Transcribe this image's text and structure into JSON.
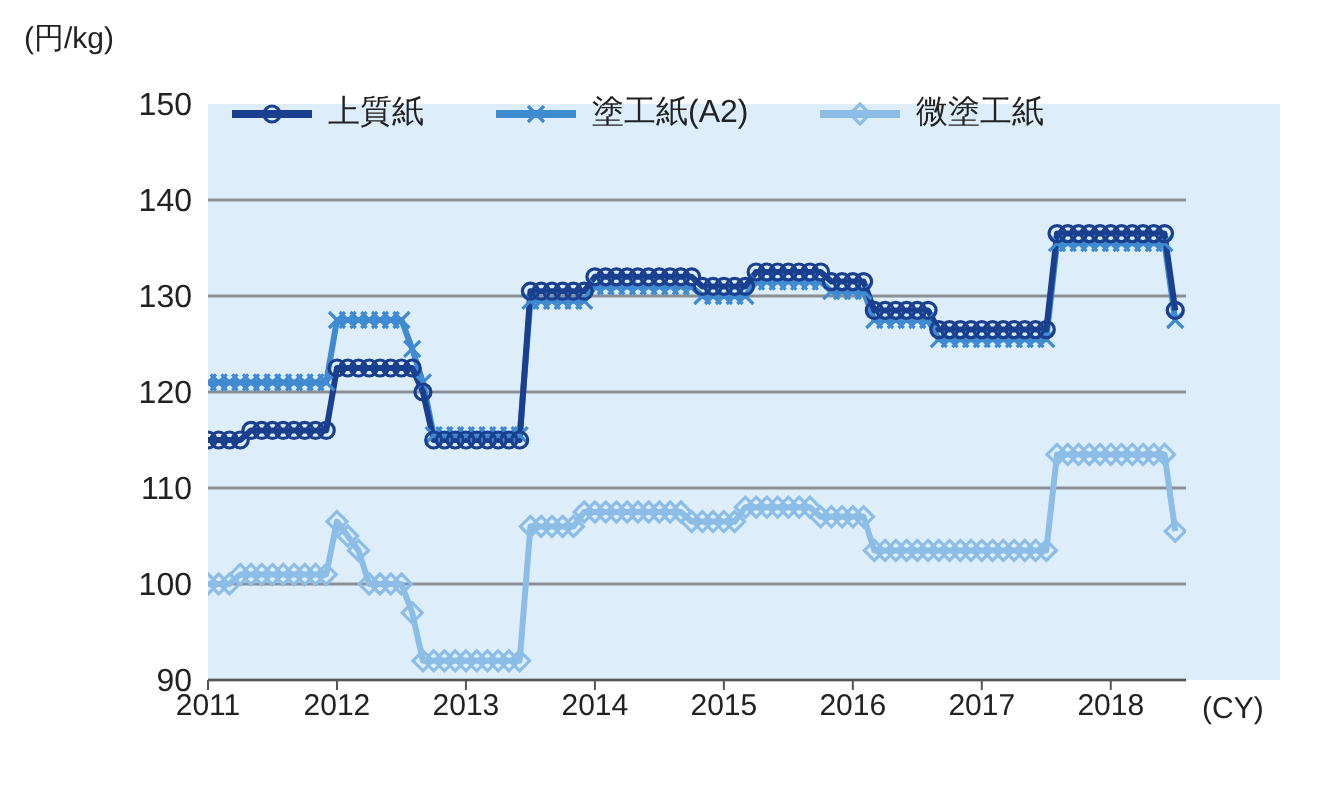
{
  "chart_data": {
    "type": "line",
    "ylabel": "(円/kg)",
    "xlabel": "(CY)",
    "x": [
      "2011-01",
      "2011-02",
      "2011-03",
      "2011-04",
      "2011-05",
      "2011-06",
      "2011-07",
      "2011-08",
      "2011-09",
      "2011-10",
      "2011-11",
      "2011-12",
      "2012-01",
      "2012-02",
      "2012-03",
      "2012-04",
      "2012-05",
      "2012-06",
      "2012-07",
      "2012-08",
      "2012-09",
      "2012-10",
      "2012-11",
      "2012-12",
      "2013-01",
      "2013-02",
      "2013-03",
      "2013-04",
      "2013-05",
      "2013-06",
      "2013-07",
      "2013-08",
      "2013-09",
      "2013-10",
      "2013-11",
      "2013-12",
      "2014-01",
      "2014-02",
      "2014-03",
      "2014-04",
      "2014-05",
      "2014-06",
      "2014-07",
      "2014-08",
      "2014-09",
      "2014-10",
      "2014-11",
      "2014-12",
      "2015-01",
      "2015-02",
      "2015-03",
      "2015-04",
      "2015-05",
      "2015-06",
      "2015-07",
      "2015-08",
      "2015-09",
      "2015-10",
      "2015-11",
      "2015-12",
      "2016-01",
      "2016-02",
      "2016-03",
      "2016-04",
      "2016-05",
      "2016-06",
      "2016-07",
      "2016-08",
      "2016-09",
      "2016-10",
      "2016-11",
      "2016-12",
      "2017-01",
      "2017-02",
      "2017-03",
      "2017-04",
      "2017-05",
      "2017-06",
      "2017-07",
      "2017-08",
      "2017-09",
      "2017-10",
      "2017-11",
      "2017-12",
      "2018-01",
      "2018-02",
      "2018-03",
      "2018-04",
      "2018-05",
      "2018-06",
      "2018-07"
    ],
    "series": [
      {
        "name": "上質紙",
        "color": "#1a3f8f",
        "marker": "circle",
        "values": [
          115,
          115,
          115,
          115,
          116,
          116,
          116,
          116,
          116,
          116,
          116,
          116,
          122.5,
          122.5,
          122.5,
          122.5,
          122.5,
          122.5,
          122.5,
          122.5,
          120,
          115,
          115,
          115,
          115,
          115,
          115,
          115,
          115,
          115,
          130.5,
          130.5,
          130.5,
          130.5,
          130.5,
          130.5,
          132,
          132,
          132,
          132,
          132,
          132,
          132,
          132,
          132,
          132,
          131,
          131,
          131,
          131,
          131,
          132.5,
          132.5,
          132.5,
          132.5,
          132.5,
          132.5,
          132.5,
          131.5,
          131.5,
          131.5,
          131.5,
          128.5,
          128.5,
          128.5,
          128.5,
          128.5,
          128.5,
          126.5,
          126.5,
          126.5,
          126.5,
          126.5,
          126.5,
          126.5,
          126.5,
          126.5,
          126.5,
          126.5,
          136.5,
          136.5,
          136.5,
          136.5,
          136.5,
          136.5,
          136.5,
          136.5,
          136.5,
          136.5,
          136.5,
          128.5
        ]
      },
      {
        "name": "塗工紙(A2)",
        "color": "#3f8ad0",
        "marker": "cross",
        "values": [
          121,
          121,
          121,
          121,
          121,
          121,
          121,
          121,
          121,
          121,
          121,
          121,
          127.5,
          127.5,
          127.5,
          127.5,
          127.5,
          127.5,
          127.5,
          124.5,
          121,
          115.5,
          115.5,
          115.5,
          115.5,
          115.5,
          115.5,
          115.5,
          115.5,
          115.5,
          129.5,
          129.5,
          129.5,
          129.5,
          129.5,
          129.5,
          131,
          131,
          131,
          131,
          131,
          131,
          131,
          131,
          131,
          131,
          130,
          130,
          130,
          130,
          130,
          131.5,
          131.5,
          131.5,
          131.5,
          131.5,
          131.5,
          131.5,
          130.5,
          130.5,
          130.5,
          130.5,
          127.5,
          127.5,
          127.5,
          127.5,
          127.5,
          127.5,
          125.5,
          125.5,
          125.5,
          125.5,
          125.5,
          125.5,
          125.5,
          125.5,
          125.5,
          125.5,
          125.5,
          135.5,
          135.5,
          135.5,
          135.5,
          135.5,
          135.5,
          135.5,
          135.5,
          135.5,
          135.5,
          135.5,
          127.5
        ]
      },
      {
        "name": "微塗工紙",
        "color": "#8cbde6",
        "marker": "diamond",
        "values": [
          100,
          100,
          100,
          101,
          101,
          101,
          101,
          101,
          101,
          101,
          101,
          101,
          106.5,
          105,
          103.5,
          100,
          100,
          100,
          100,
          97,
          92,
          92,
          92,
          92,
          92,
          92,
          92,
          92,
          92,
          92,
          106,
          106,
          106,
          106,
          106,
          107.5,
          107.5,
          107.5,
          107.5,
          107.5,
          107.5,
          107.5,
          107.5,
          107.5,
          107.5,
          106.5,
          106.5,
          106.5,
          106.5,
          106.5,
          108,
          108,
          108,
          108,
          108,
          108,
          108,
          107,
          107,
          107,
          107,
          107,
          103.5,
          103.5,
          103.5,
          103.5,
          103.5,
          103.5,
          103.5,
          103.5,
          103.5,
          103.5,
          103.5,
          103.5,
          103.5,
          103.5,
          103.5,
          103.5,
          103.5,
          113.5,
          113.5,
          113.5,
          113.5,
          113.5,
          113.5,
          113.5,
          113.5,
          113.5,
          113.5,
          113.5,
          105.5
        ]
      }
    ],
    "xlim": [
      "2011-01",
      "2018-08"
    ],
    "xticks": [
      "2011",
      "2012",
      "2013",
      "2014",
      "2015",
      "2016",
      "2017",
      "2018"
    ],
    "ylim": [
      90,
      150
    ],
    "yticks": [
      90,
      100,
      110,
      120,
      130,
      140,
      150
    ],
    "grid": "y",
    "legend": "top",
    "line_style": "solid"
  }
}
